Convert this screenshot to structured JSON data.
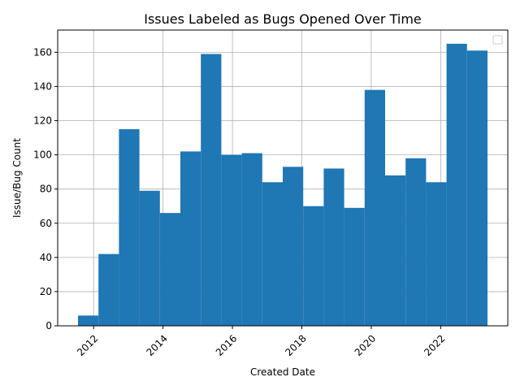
{
  "chart_data": {
    "type": "bar",
    "title": "Issues Labeled as Bugs Opened Over Time",
    "xlabel": "Created Date",
    "ylabel": "Issue/Bug Count",
    "x_range": [
      2011.55,
      2023.35
    ],
    "ylim": [
      0,
      173
    ],
    "bin_edges": [
      2011.55,
      2012.14,
      2012.73,
      2013.32,
      2013.91,
      2014.5,
      2015.09,
      2015.68,
      2016.27,
      2016.86,
      2017.45,
      2018.04,
      2018.63,
      2019.22,
      2019.81,
      2020.4,
      2020.99,
      2021.58,
      2022.17,
      2022.76,
      2023.35
    ],
    "values": [
      6,
      42,
      115,
      79,
      66,
      102,
      159,
      100,
      101,
      84,
      93,
      70,
      92,
      69,
      138,
      88,
      98,
      84,
      165,
      161
    ],
    "x_ticks": [
      2012,
      2014,
      2016,
      2018,
      2020,
      2022
    ],
    "x_tick_labels": [
      "2012",
      "2014",
      "2016",
      "2018",
      "2020",
      "2022"
    ],
    "y_ticks": [
      0,
      20,
      40,
      60,
      80,
      100,
      120,
      140,
      160
    ],
    "y_tick_labels": [
      "0",
      "20",
      "40",
      "60",
      "80",
      "100",
      "120",
      "140",
      "160"
    ],
    "grid": true,
    "legend": "top-right",
    "bar_color": "#1f77b4"
  }
}
